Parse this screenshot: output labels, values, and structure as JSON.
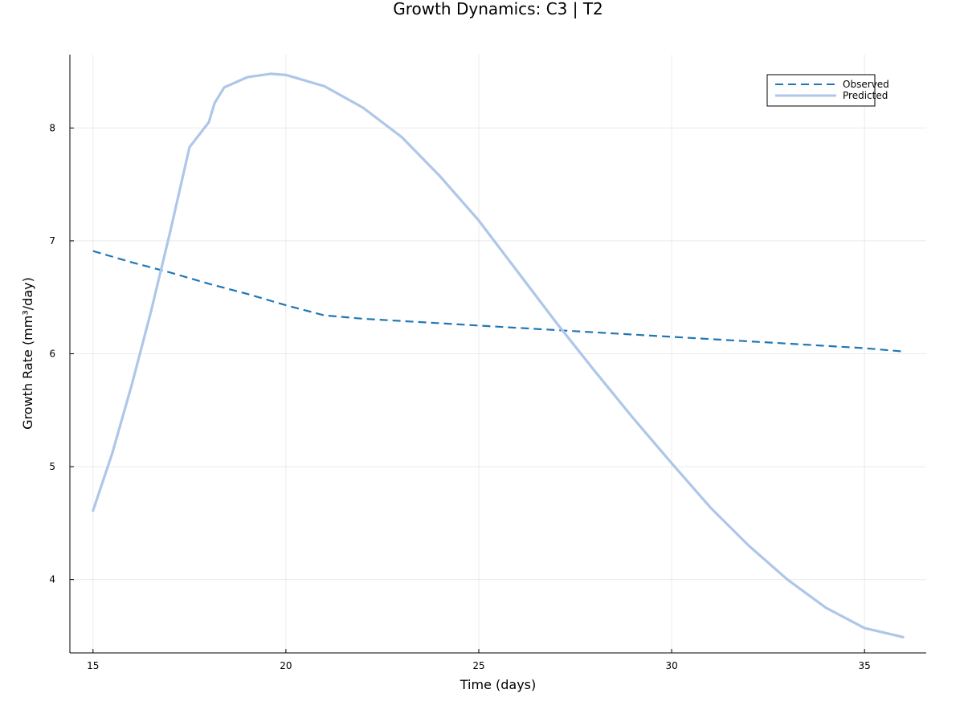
{
  "chart_data": {
    "type": "line",
    "title": "Growth Dynamics: C3 | T2",
    "xlabel": "Time (days)",
    "ylabel": "Growth Rate (mm³/day)",
    "xlim": [
      14.4,
      36.6
    ],
    "ylim": [
      3.35,
      8.65
    ],
    "xticks": [
      15,
      20,
      25,
      30,
      35
    ],
    "yticks": [
      4,
      5,
      6,
      7,
      8
    ],
    "grid": true,
    "legend_position": "top-right",
    "series": [
      {
        "name": "Observed",
        "color": "#1f77b4",
        "style": "dashed",
        "x": [
          15,
          16,
          17,
          18,
          19,
          20,
          21,
          22,
          23,
          24,
          25,
          26,
          27,
          28,
          29,
          30,
          31,
          32,
          33,
          34,
          35,
          36
        ],
        "y": [
          6.91,
          6.81,
          6.72,
          6.62,
          6.53,
          6.43,
          6.34,
          6.31,
          6.29,
          6.27,
          6.25,
          6.23,
          6.21,
          6.19,
          6.17,
          6.15,
          6.13,
          6.11,
          6.09,
          6.07,
          6.05,
          6.02
        ]
      },
      {
        "name": "Predicted",
        "color": "#aec7e8",
        "style": "solid",
        "x": [
          15,
          15.5,
          16,
          16.5,
          17,
          17.5,
          18,
          18.15,
          18.4,
          19,
          19.6,
          20,
          21,
          22,
          23,
          24,
          25,
          26,
          27,
          28,
          29,
          30,
          31,
          32,
          33,
          34,
          35,
          36
        ],
        "y": [
          4.61,
          5.12,
          5.72,
          6.37,
          7.08,
          7.83,
          8.05,
          8.22,
          8.36,
          8.45,
          8.48,
          8.47,
          8.37,
          8.18,
          7.92,
          7.57,
          7.18,
          6.73,
          6.28,
          5.85,
          5.43,
          5.03,
          4.64,
          4.3,
          4.0,
          3.75,
          3.57,
          3.49
        ]
      }
    ]
  }
}
